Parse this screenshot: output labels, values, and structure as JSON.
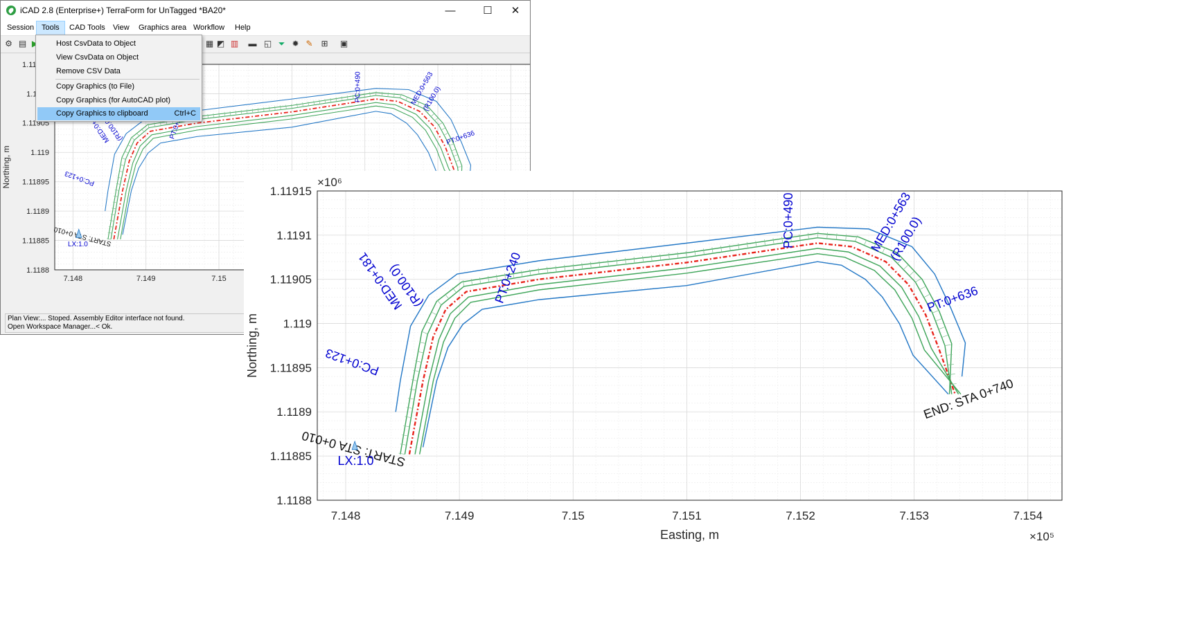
{
  "window": {
    "title": "iCAD 2.8  (Enterprise+) TerraForm for UnTagged *BA20*",
    "controls": {
      "minimize": "—",
      "maximize": "☐",
      "close": "✕"
    }
  },
  "menu": [
    "Session",
    "Tools",
    "CAD Tools",
    "View",
    "Graphics area",
    "Workflow",
    "Help"
  ],
  "tools_menu": {
    "items": [
      {
        "label": "Host CsvData to Object",
        "shortcut": ""
      },
      {
        "label": "View CsvData on Object",
        "shortcut": ""
      },
      {
        "label": "Remove CSV Data",
        "shortcut": ""
      },
      {
        "label": "Copy Graphics (to File)",
        "shortcut": ""
      },
      {
        "label": "Copy Graphics (for AutoCAD plot)",
        "shortcut": ""
      },
      {
        "label": "Copy Graphics to clipboard",
        "shortcut": "Ctrl+C",
        "highlighted": true
      }
    ]
  },
  "toolbar_icons": [
    "gear-icon",
    "document-icon",
    "play-icon",
    "ruler-icon",
    "graph-icon",
    "funnel-icon",
    "settings-icon",
    "route-icon",
    "grid-icon",
    "panel-icon"
  ],
  "status": {
    "line1": "Plan View:... Stoped. Assembly Editor interface not found.",
    "line2": "Open Workspace Manager...< Ok."
  },
  "chart_data": [
    {
      "type": "line",
      "xlabel": "Easting, m",
      "ylabel": "Northing, m",
      "x_exponent": "×10⁵",
      "y_exponent": "×10⁶",
      "xlim": [
        714775,
        715430
      ],
      "ylim": [
        1118800,
        1119150
      ],
      "xticks": [
        "7.148",
        "7.149",
        "7.15",
        "7.151",
        "7.152",
        "7.153",
        "7.154"
      ],
      "yticks": [
        "1.1188",
        "1.11885",
        "1.1189",
        "1.11895",
        "1.119",
        "1.11905",
        "1.1191",
        "1.11915"
      ],
      "xtick_values": [
        714800,
        714900,
        715000,
        715100,
        715200,
        715300,
        715400
      ],
      "ytick_values": [
        1118800,
        1118850,
        1118900,
        1118950,
        1119000,
        1119050,
        1119100,
        1119150
      ],
      "grid": true,
      "series": [
        {
          "values": [
            [
              714856,
              1118852
            ],
            [
              714868,
              1118935
            ],
            [
              714877,
              1118985
            ],
            [
              714888,
              1119016
            ],
            [
              714906,
              1119036
            ],
            [
              714970,
              1119050
            ],
            [
              715100,
              1119069
            ],
            [
              715215,
              1119091
            ],
            [
              715245,
              1119087
            ],
            [
              715275,
              1119070
            ],
            [
              715295,
              1119044
            ],
            [
              715310,
              1119010
            ],
            [
              715321,
              1118974
            ],
            [
              715336,
              1118920
            ]
          ]
        },
        {
          "values": [
            [
              714852,
              1118852
            ],
            [
              714863,
              1118935
            ],
            [
              714872,
              1118988
            ],
            [
              714884,
              1119021
            ],
            [
              714904,
              1119042
            ],
            [
              714970,
              1119056
            ],
            [
              715100,
              1119075
            ],
            [
              715215,
              1119097
            ],
            [
              715248,
              1119093
            ],
            [
              715280,
              1119075
            ],
            [
              715301,
              1119047
            ],
            [
              715316,
              1119012
            ],
            [
              715327,
              1118975
            ],
            [
              715333,
              1118920
            ]
          ]
        },
        {
          "values": [
            [
              714861,
              1118852
            ],
            [
              714873,
              1118935
            ],
            [
              714882,
              1118982
            ],
            [
              714892,
              1119011
            ],
            [
              714908,
              1119030
            ],
            [
              714970,
              1119044
            ],
            [
              715100,
              1119063
            ],
            [
              715215,
              1119085
            ],
            [
              715242,
              1119081
            ],
            [
              715270,
              1119065
            ],
            [
              715289,
              1119041
            ],
            [
              715304,
              1119008
            ],
            [
              715315,
              1118972
            ],
            [
              715339,
              1118920
            ]
          ]
        },
        {
          "values": [
            [
              714848,
              1118852
            ],
            [
              714859,
              1118935
            ],
            [
              714867,
              1118991
            ],
            [
              714880,
              1119025
            ],
            [
              714902,
              1119047
            ],
            [
              714970,
              1119061
            ],
            [
              715100,
              1119080
            ],
            [
              715215,
              1119102
            ],
            [
              715251,
              1119098
            ],
            [
              715285,
              1119080
            ],
            [
              715307,
              1119050
            ],
            [
              715322,
              1119014
            ],
            [
              715333,
              1118977
            ],
            [
              715331,
              1118920
            ]
          ]
        },
        {
          "values": [
            [
              714865,
              1118852
            ],
            [
              714877,
              1118935
            ],
            [
              714886,
              1118979
            ],
            [
              714896,
              1119006
            ],
            [
              714910,
              1119024
            ],
            [
              714970,
              1119038
            ],
            [
              715100,
              1119057
            ],
            [
              715215,
              1119079
            ],
            [
              715239,
              1119075
            ],
            [
              715265,
              1119060
            ],
            [
              715283,
              1119038
            ],
            [
              715298,
              1119006
            ],
            [
              715309,
              1118970
            ],
            [
              715341,
              1118920
            ]
          ]
        },
        {
          "values": [
            [
              714844,
              1118900
            ],
            [
              714848,
              1118935
            ],
            [
              714857,
              1118997
            ],
            [
              714873,
              1119032
            ],
            [
              714898,
              1119056
            ],
            [
              714970,
              1119071
            ],
            [
              715100,
              1119091
            ],
            [
              715215,
              1119109
            ],
            [
              715260,
              1119107
            ],
            [
              715298,
              1119087
            ],
            [
              715318,
              1119056
            ],
            [
              715332,
              1119018
            ],
            [
              715345,
              1118978
            ],
            [
              715342,
              1118940
            ]
          ]
        },
        {
          "values": [
            [
              714868,
              1118860
            ],
            [
              714880,
              1118935
            ],
            [
              714890,
              1118973
            ],
            [
              714903,
              1118999
            ],
            [
              714920,
              1119016
            ],
            [
              714970,
              1119027
            ],
            [
              715100,
              1119043
            ],
            [
              715215,
              1119070
            ],
            [
              715236,
              1119066
            ],
            [
              715257,
              1119050
            ],
            [
              715272,
              1119030
            ],
            [
              715287,
              1119000
            ],
            [
              715299,
              1118964
            ],
            [
              715330,
              1118920
            ]
          ]
        }
      ],
      "annotations": [
        {
          "text": "PC:0+123",
          "x": 714830,
          "y": 1118950,
          "rotate": 200
        },
        {
          "text": "MED:0+181",
          "x": 714850,
          "y": 1119020,
          "rotate": 235
        },
        {
          "text": "(R100.0)",
          "x": 714868,
          "y": 1119023,
          "rotate": 235
        },
        {
          "text": "PT:0+240",
          "x": 714938,
          "y": 1119022,
          "rotate": 290
        },
        {
          "text": "PC:0+490",
          "x": 715193,
          "y": 1119085,
          "rotate": 270
        },
        {
          "text": "MED:0+563",
          "x": 715268,
          "y": 1119080,
          "rotate": 300
        },
        {
          "text": "(R100.0)",
          "x": 715285,
          "y": 1119070,
          "rotate": 300
        },
        {
          "text": "PT:0+636",
          "x": 715313,
          "y": 1119013,
          "rotate": 340
        },
        {
          "text": "START: STA 0+010",
          "x": 714853,
          "y": 1118847,
          "rotate": 195
        },
        {
          "text": "END: STA 0+740",
          "x": 715310,
          "y": 1118892,
          "rotate": 340
        },
        {
          "text": "LX:1.0",
          "x": 714793,
          "y": 1118840,
          "rotate": 0
        }
      ]
    }
  ]
}
